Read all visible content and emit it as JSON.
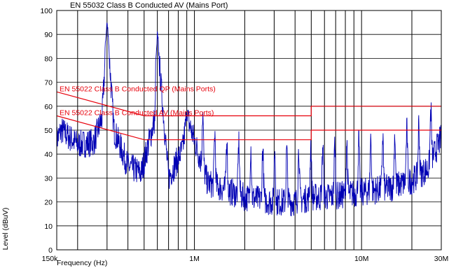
{
  "chart_data": {
    "type": "line",
    "title": "EN 55032 Class B Conducted AV (Mains Port)",
    "xlabel": "Frequency (Hz)",
    "ylabel": "Level (dBuV)",
    "x_scale": "log",
    "xlim": [
      150000,
      30000000
    ],
    "ylim": [
      0,
      100
    ],
    "x_tick_values": [
      1000000,
      10000000,
      30000000
    ],
    "x_tick_labels": [
      "1M",
      "10M",
      "30M"
    ],
    "x_min_label": "150k",
    "y_ticks": [
      0,
      10,
      20,
      30,
      40,
      50,
      60,
      70,
      80,
      90,
      100
    ],
    "grid": true,
    "colors": {
      "trace": "#0000b4",
      "limits": "#e8000b",
      "grid": "#000000"
    },
    "series": [
      {
        "name": "EN 55022 Class B Conducted QP (Mains Ports)",
        "x": [
          150000,
          500000,
          5000000,
          5000000,
          30000000
        ],
        "y": [
          66,
          56,
          56,
          60,
          60
        ]
      },
      {
        "name": "EN 55022 Class B Conducted AV (Mains Ports)",
        "x": [
          150000,
          500000,
          5000000,
          5000000,
          30000000
        ],
        "y": [
          56,
          46,
          46,
          50,
          50
        ]
      },
      {
        "x": [
          150000,
          160000,
          200000,
          250000,
          280000,
          300000,
          330000,
          400000,
          480000,
          580000,
          600000,
          700000,
          850000,
          900000,
          1200000,
          2000000,
          3000000,
          4000000,
          5000000,
          6000000,
          8000000,
          10000000,
          15000000,
          20000000,
          25000000,
          30000000
        ],
        "y": [
          46,
          50,
          44,
          45,
          55,
          95,
          50,
          35,
          32,
          55,
          88,
          30,
          42,
          56,
          28,
          22,
          20,
          20,
          22,
          22,
          23,
          24,
          26,
          29,
          34,
          47
        ],
        "peaks": [
          {
            "x": 300000,
            "y": 95
          },
          {
            "x": 600000,
            "y": 88
          },
          {
            "x": 900000,
            "y": 56
          }
        ]
      }
    ]
  }
}
